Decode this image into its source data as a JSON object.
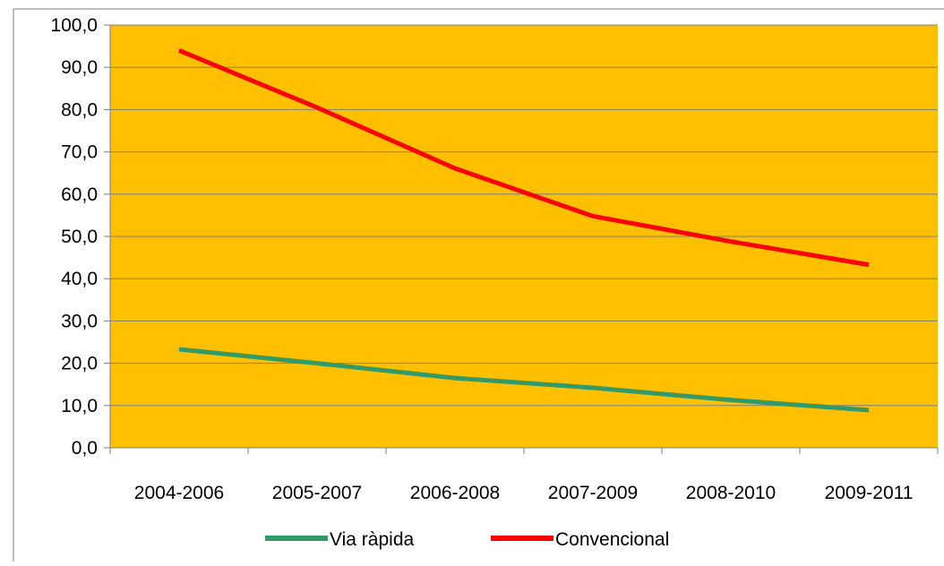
{
  "chart_data": {
    "type": "line",
    "categories": [
      "2004-2006",
      "2005-2007",
      "2006-2008",
      "2007-2009",
      "2008-2010",
      "2009-2011"
    ],
    "series": [
      {
        "name": "Via ràpida",
        "values": [
          23.3,
          20.0,
          16.5,
          14.2,
          11.3,
          8.9
        ],
        "color": "#339966"
      },
      {
        "name": "Convencional",
        "values": [
          94.0,
          80.5,
          66.1,
          54.8,
          48.8,
          43.3
        ],
        "color": "#ff0000"
      }
    ],
    "ylim": [
      0,
      100
    ],
    "yticks": [
      "0,0",
      "10,0",
      "20,0",
      "30,0",
      "40,0",
      "50,0",
      "60,0",
      "70,0",
      "80,0",
      "90,0",
      "100,0"
    ],
    "grid": "horizontal",
    "plot_background": "#ffc000",
    "legend": "bottom"
  }
}
